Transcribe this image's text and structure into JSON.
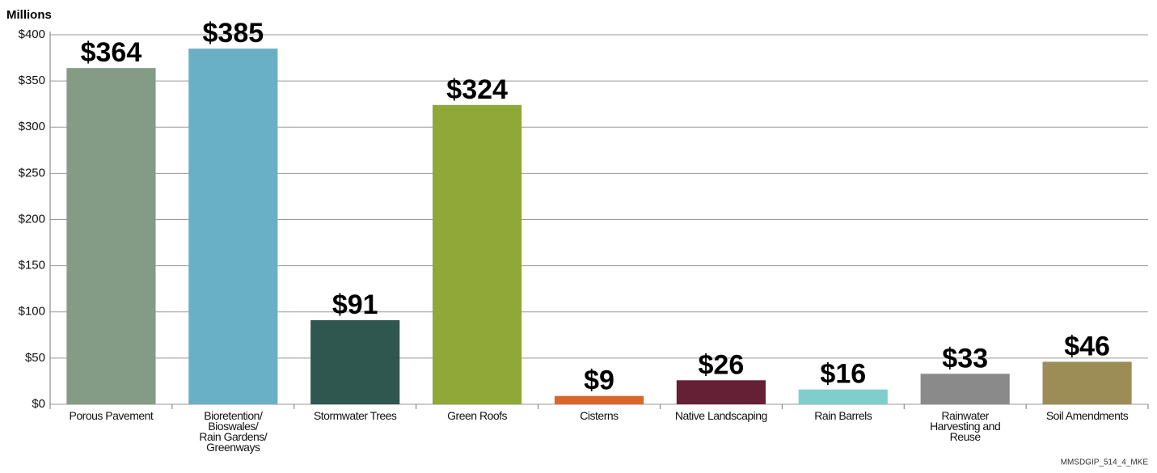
{
  "chart_data": {
    "type": "bar",
    "ylabel": "Millions",
    "categories": [
      "Porous Pavement",
      "Bioretention/\nBioswales/\nRain Gardens/\nGreenways",
      "Stormwater Trees",
      "Green Roofs",
      "Cisterns",
      "Native Landscaping",
      "Rain Barrels",
      "Rainwater\nHarvesting and\nReuse",
      "Soil Amendments"
    ],
    "values": [
      364,
      385,
      91,
      324,
      9,
      26,
      16,
      33,
      46
    ],
    "value_labels": [
      "$364",
      "$385",
      "$91",
      "$324",
      "$9",
      "$26",
      "$16",
      "$33",
      "$46"
    ],
    "colors": [
      "#849b85",
      "#69afc6",
      "#2f564f",
      "#90a837",
      "#d9672b",
      "#662035",
      "#7ecfcb",
      "#8a8a8b",
      "#9b8d55"
    ],
    "ylim": [
      0,
      400
    ],
    "yticks": [
      {
        "value": 0,
        "label": "$0"
      },
      {
        "value": 50,
        "label": "$50"
      },
      {
        "value": 100,
        "label": "$100"
      },
      {
        "value": 150,
        "label": "$150"
      },
      {
        "value": 200,
        "label": "$200"
      },
      {
        "value": 250,
        "label": "$250"
      },
      {
        "value": 300,
        "label": "$300"
      },
      {
        "value": 350,
        "label": "$350"
      },
      {
        "value": 400,
        "label": "$400"
      }
    ],
    "grid": true,
    "footnote": "MMSDGIP_514_4_MKE"
  }
}
